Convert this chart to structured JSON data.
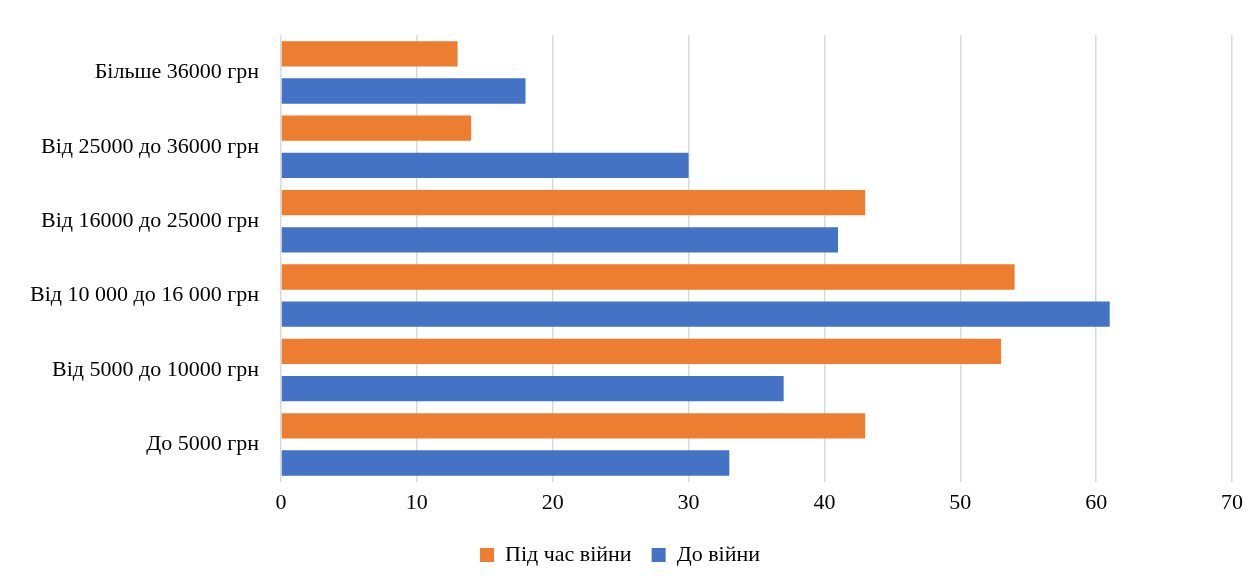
{
  "chart_data": {
    "type": "bar",
    "orientation": "horizontal",
    "categories": [
      "Більше 36000 грн",
      "Від 25000 до 36000 грн",
      "Від 16000 до 25000 грн",
      "Від 10 000 до 16 000 грн",
      "Від 5000 до 10000 грн",
      "До 5000 грн"
    ],
    "series": [
      {
        "name": "Під час війни",
        "color": "#ed7d31",
        "values": [
          13,
          14,
          43,
          54,
          53,
          43
        ]
      },
      {
        "name": "До війни",
        "color": "#4472c4",
        "values": [
          18,
          30,
          41,
          61,
          37,
          33
        ]
      }
    ],
    "xlim": [
      0,
      70
    ],
    "xticks": [
      0,
      10,
      20,
      30,
      40,
      50,
      60,
      70
    ],
    "grid": "x",
    "legend": "bottom"
  }
}
